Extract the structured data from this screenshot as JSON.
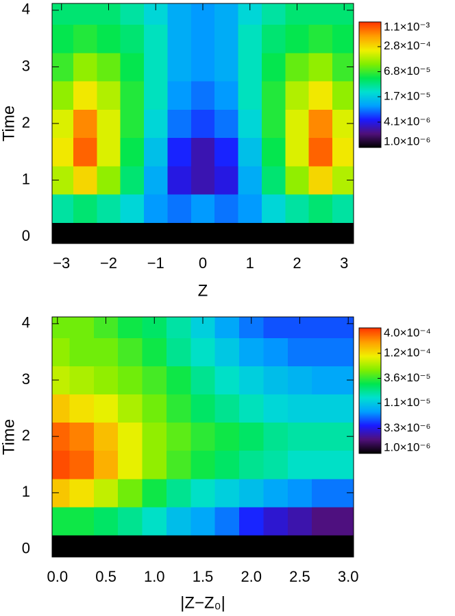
{
  "chart_data": [
    {
      "type": "heatmap",
      "xlabel": "Z",
      "ylabel": "Time",
      "color_scale": "log",
      "xlim": [
        -3.2,
        3.2
      ],
      "ylim": [
        -0.12,
        4.12
      ],
      "xticks": [
        {
          "value": -3,
          "label": "−3"
        },
        {
          "value": -2,
          "label": "−2"
        },
        {
          "value": -1,
          "label": "−1"
        },
        0,
        1,
        2,
        3
      ],
      "yticks": [
        0,
        1,
        2,
        3,
        4
      ],
      "xbins": [
        -3.25,
        -2.75,
        -2.25,
        -1.75,
        -1.25,
        -0.75,
        -0.25,
        0.25,
        0.75,
        1.25,
        1.75,
        2.25,
        2.75,
        3.25
      ],
      "ybins": [
        -0.25,
        0.25,
        0.75,
        1.25,
        1.75,
        2.25,
        2.75,
        3.25,
        3.75,
        4.25
      ],
      "values": [
        [
          1e-06,
          1e-06,
          1e-06,
          1e-06,
          1e-06,
          1e-06,
          1e-06,
          1e-06,
          1e-06,
          1e-06,
          1e-06,
          1e-06,
          1e-06
        ],
        [
          3e-05,
          4e-05,
          3e-05,
          2e-05,
          1e-05,
          8e-06,
          1e-05,
          8e-06,
          1e-05,
          2e-05,
          3e-05,
          4e-05,
          3e-05
        ],
        [
          0.00015,
          0.0003,
          0.00012,
          4e-05,
          1.2e-05,
          4e-06,
          3e-06,
          4e-06,
          1.2e-05,
          4e-05,
          0.00012,
          0.0003,
          0.00015
        ],
        [
          0.00025,
          0.0008,
          0.0002,
          5e-05,
          1.5e-05,
          5e-06,
          3e-06,
          5e-06,
          1.5e-05,
          5e-05,
          0.0002,
          0.0008,
          0.00025
        ],
        [
          0.0002,
          0.0006,
          0.0002,
          6e-05,
          2e-05,
          8e-06,
          6e-06,
          8e-06,
          2e-05,
          6e-05,
          0.0002,
          0.0006,
          0.0002
        ],
        [
          0.00012,
          0.00025,
          0.00015,
          6e-05,
          2.5e-05,
          1e-05,
          8e-06,
          1e-05,
          2.5e-05,
          6e-05,
          0.00015,
          0.00025,
          0.00012
        ],
        [
          7e-05,
          0.00012,
          9e-05,
          5e-05,
          2.5e-05,
          1.2e-05,
          1e-05,
          1.2e-05,
          2.5e-05,
          5e-05,
          9e-05,
          0.00012,
          7e-05
        ],
        [
          5e-05,
          6e-05,
          5e-05,
          4e-05,
          2.5e-05,
          1.2e-05,
          1e-05,
          1.2e-05,
          2.5e-05,
          4e-05,
          5e-05,
          6e-05,
          5e-05
        ],
        [
          4e-05,
          4e-05,
          4e-05,
          3e-05,
          2e-05,
          1.2e-05,
          1e-05,
          1.2e-05,
          2e-05,
          3e-05,
          4e-05,
          4e-05,
          4e-05
        ]
      ],
      "clim": [
        1e-06,
        0.0011
      ],
      "cticks": [
        {
          "value": 0.0011,
          "label": "1.1×10⁻³"
        },
        {
          "value": 0.00028,
          "label": "2.8×10⁻⁴"
        },
        {
          "value": 6.8e-05,
          "label": "6.8×10⁻⁵"
        },
        {
          "value": 1.7e-05,
          "label": "1.7×10⁻⁵"
        },
        {
          "value": 4.1e-06,
          "label": "4.1×10⁻⁶"
        },
        {
          "value": 1e-06,
          "label": "1.0×10⁻⁶"
        }
      ],
      "colormap": [
        "#000000",
        "#50107a",
        "#1a1aff",
        "#00a0ff",
        "#00e0d0",
        "#00e650",
        "#80ee00",
        "#f0f000",
        "#ffa000",
        "#ff3800"
      ]
    },
    {
      "type": "heatmap",
      "xlabel": "|Z−Z₀|",
      "ylabel": "Time",
      "color_scale": "log",
      "xlim": [
        -0.055,
        3.055
      ],
      "ylim": [
        -0.14,
        4.12
      ],
      "xticks": [
        {
          "value": 0,
          "label": "0.0"
        },
        0.5,
        {
          "value": 1,
          "label": "1.0"
        },
        1.5,
        {
          "value": 2,
          "label": "2.0"
        },
        2.5,
        {
          "value": 3,
          "label": "3.0"
        }
      ],
      "yticks": [
        0,
        1,
        2,
        3,
        4
      ],
      "xbins": [
        -0.125,
        0.125,
        0.375,
        0.625,
        0.875,
        1.125,
        1.375,
        1.625,
        1.875,
        2.125,
        2.375,
        2.625,
        2.875,
        3.125
      ],
      "ybins": [
        -0.25,
        0.25,
        0.75,
        1.25,
        1.75,
        2.25,
        2.75,
        3.25,
        3.75,
        4.25
      ],
      "values": [
        [
          1e-06,
          1e-06,
          1e-06,
          1e-06,
          1e-06,
          1e-06,
          1e-06,
          1e-06,
          1e-06,
          1e-06,
          1e-06,
          1e-06,
          1e-06
        ],
        [
          3e-05,
          3e-05,
          2.5e-05,
          2e-05,
          1.5e-05,
          1e-05,
          8e-06,
          6e-06,
          4e-06,
          3e-06,
          2.5e-06,
          2e-06,
          2e-06
        ],
        [
          0.00015,
          0.00012,
          8e-05,
          5e-05,
          3e-05,
          2e-05,
          1.5e-05,
          1.2e-05,
          1e-05,
          8e-06,
          7e-06,
          6e-06,
          6e-06
        ],
        [
          0.00035,
          0.0003,
          0.00018,
          0.0001,
          6e-05,
          4e-05,
          3e-05,
          2.5e-05,
          2e-05,
          1.8e-05,
          1.5e-05,
          1.5e-05,
          1.5e-05
        ],
        [
          0.0003,
          0.00025,
          0.00016,
          0.0001,
          6e-05,
          4.5e-05,
          3.5e-05,
          3e-05,
          2.5e-05,
          2e-05,
          1.8e-05,
          1.8e-05,
          1.8e-05
        ],
        [
          0.00015,
          0.00012,
          0.0001,
          7e-05,
          5e-05,
          3.5e-05,
          2.5e-05,
          2e-05,
          1.6e-05,
          1.3e-05,
          1.2e-05,
          1.2e-05,
          1.2e-05
        ],
        [
          8e-05,
          7e-05,
          6e-05,
          5e-05,
          4e-05,
          3e-05,
          2e-05,
          1.5e-05,
          1.2e-05,
          1e-05,
          9e-06,
          8e-06,
          8e-06
        ],
        [
          6e-05,
          5e-05,
          5e-05,
          4e-05,
          3e-05,
          2e-05,
          1.5e-05,
          1.1e-05,
          8e-06,
          7e-06,
          6e-06,
          6e-06,
          6e-06
        ],
        [
          5e-05,
          5e-05,
          4e-05,
          3e-05,
          2.5e-05,
          1.8e-05,
          1.2e-05,
          8e-06,
          6e-06,
          5e-06,
          5e-06,
          5e-06,
          5e-06
        ]
      ],
      "clim": [
        1e-06,
        0.0004
      ],
      "cticks": [
        {
          "value": 0.0004,
          "label": "4.0×10⁻⁴"
        },
        {
          "value": 0.00012,
          "label": "1.2×10⁻⁴"
        },
        {
          "value": 3.6e-05,
          "label": "3.6×10⁻⁵"
        },
        {
          "value": 1.1e-05,
          "label": "1.1×10⁻⁵"
        },
        {
          "value": 3.3e-06,
          "label": "3.3×10⁻⁶"
        },
        {
          "value": 1e-06,
          "label": "1.0×10⁻⁶"
        }
      ],
      "colormap": [
        "#000000",
        "#50107a",
        "#1a1aff",
        "#00a0ff",
        "#00e0d0",
        "#00e650",
        "#80ee00",
        "#f0f000",
        "#ffa000",
        "#ff3800"
      ]
    }
  ]
}
